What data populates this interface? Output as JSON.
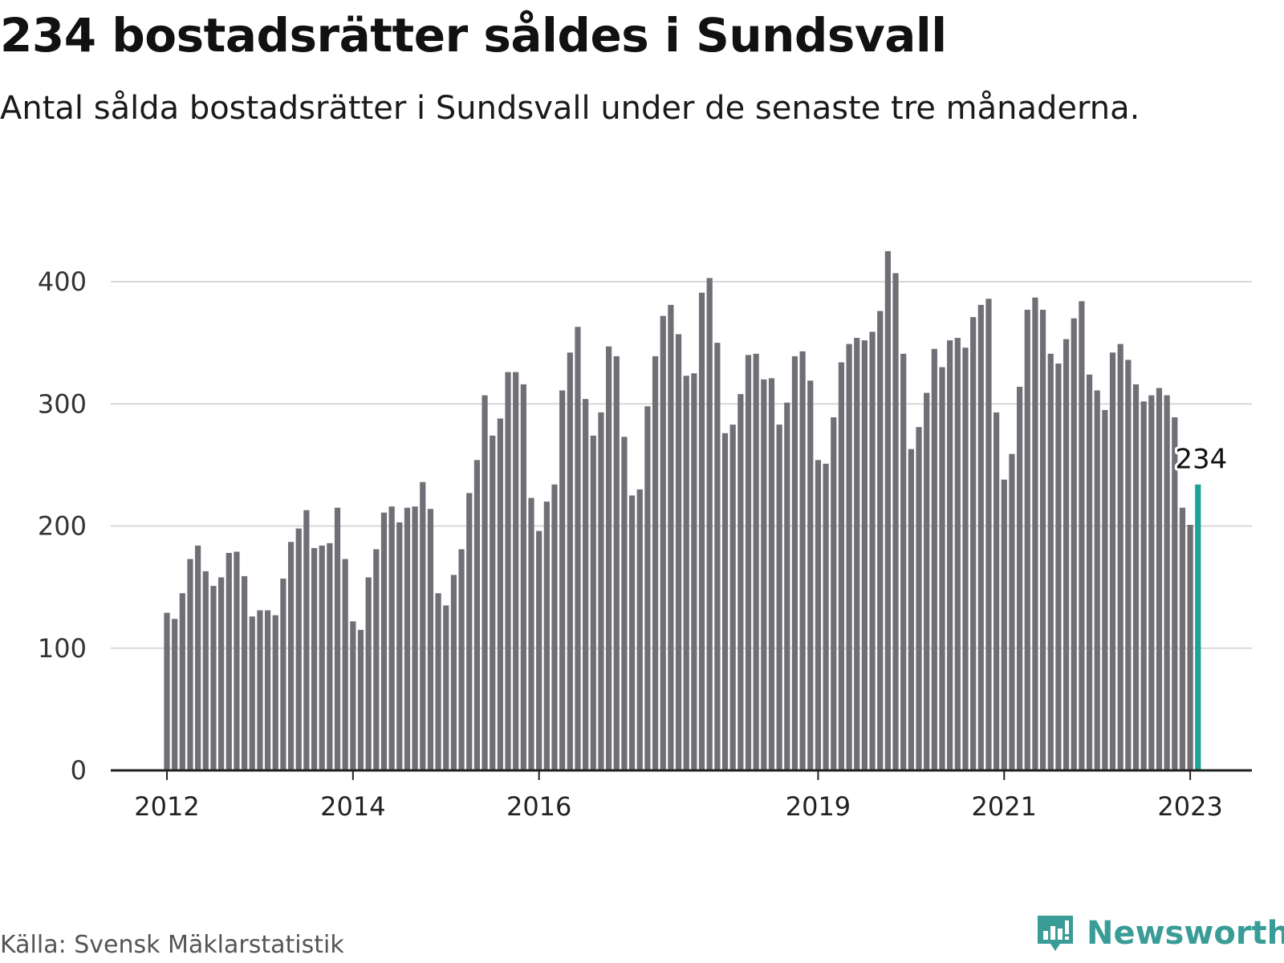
{
  "header": {
    "title": "234 bostadsrätter såldes i Sundsvall",
    "subtitle": "Antal sålda bostadsrätter i Sundsvall under de senaste tre månaderna."
  },
  "footer": {
    "source": "Källa: Svensk Mäklarstatistik",
    "brand": "Newsworthy",
    "brand_icon": "newsworthy-logo-icon"
  },
  "colors": {
    "bar": "#6f6f76",
    "highlight": "#1aa396",
    "grid": "#d8d8d8",
    "axis": "#222222",
    "brand": "#3a9c96"
  },
  "chart_data": {
    "type": "bar",
    "title": "234 bostadsrätter såldes i Sundsvall",
    "subtitle": "Antal sålda bostadsrätter i Sundsvall under de senaste tre månaderna.",
    "xlabel": "",
    "ylabel": "",
    "ylim": [
      0,
      430
    ],
    "yticks": [
      0,
      100,
      200,
      300,
      400
    ],
    "grid": true,
    "x_start": "2012-01",
    "x_ticks": [
      {
        "label": "2012",
        "month": "2012-01"
      },
      {
        "label": "2014",
        "month": "2014-01"
      },
      {
        "label": "2016",
        "month": "2016-01"
      },
      {
        "label": "2019",
        "month": "2019-01"
      },
      {
        "label": "2021",
        "month": "2021-01"
      },
      {
        "label": "2023",
        "month": "2023-01"
      }
    ],
    "highlight": {
      "month": "2023-02",
      "value": 234,
      "label": "234"
    },
    "values": [
      129,
      124,
      145,
      173,
      184,
      163,
      151,
      158,
      178,
      179,
      159,
      126,
      131,
      131,
      127,
      157,
      187,
      198,
      213,
      182,
      184,
      186,
      215,
      173,
      122,
      115,
      158,
      181,
      211,
      216,
      203,
      215,
      216,
      236,
      214,
      145,
      135,
      160,
      181,
      227,
      254,
      307,
      274,
      288,
      326,
      326,
      316,
      223,
      196,
      220,
      234,
      311,
      342,
      363,
      304,
      274,
      293,
      347,
      339,
      273,
      225,
      230,
      298,
      339,
      372,
      381,
      357,
      323,
      325,
      391,
      403,
      350,
      276,
      283,
      308,
      340,
      341,
      320,
      321,
      283,
      301,
      339,
      343,
      319,
      254,
      251,
      289,
      334,
      349,
      354,
      352,
      359,
      376,
      425,
      407,
      341,
      263,
      281,
      309,
      345,
      330,
      352,
      354,
      346,
      371,
      381,
      386,
      293,
      238,
      259,
      314,
      377,
      387,
      377,
      341,
      333,
      353,
      370,
      384,
      324,
      311,
      295,
      342,
      349,
      336,
      316,
      302,
      307,
      313,
      307,
      289,
      215,
      201,
      234
    ]
  }
}
